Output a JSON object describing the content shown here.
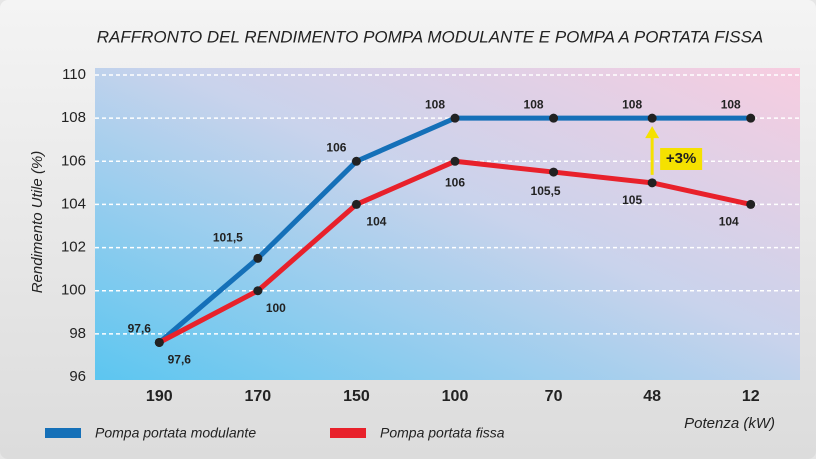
{
  "chart_data": {
    "type": "line",
    "title": "RAFFRONTO DEL RENDIMENTO POMPA MODULANTE E POMPA A PORTATA FISSA",
    "y_label": "Rendimento Utile (%)",
    "x_label": "Potenza (kW)",
    "categories": [
      "190",
      "170",
      "150",
      "100",
      "70",
      "48",
      "12"
    ],
    "series": [
      {
        "name": "Pompa portata modulante",
        "color": "#1570b8",
        "values": [
          97.6,
          101.5,
          106,
          108,
          108,
          108,
          108
        ],
        "value_labels": [
          "97,6",
          "101,5",
          "106",
          "108",
          "108",
          "108",
          "108"
        ]
      },
      {
        "name": "Pompa portata fissa",
        "color": "#e8212b",
        "values": [
          97.6,
          100,
          104,
          106,
          105.5,
          105,
          104
        ],
        "value_labels": [
          "97,6",
          "100",
          "104",
          "106",
          "105,5",
          "105",
          "104"
        ]
      }
    ],
    "annotation": {
      "text": "+3%",
      "category_index": 5
    },
    "ylim": [
      96,
      110
    ],
    "yticks": [
      96,
      98,
      100,
      102,
      104,
      106,
      108,
      110
    ],
    "grid": true
  }
}
